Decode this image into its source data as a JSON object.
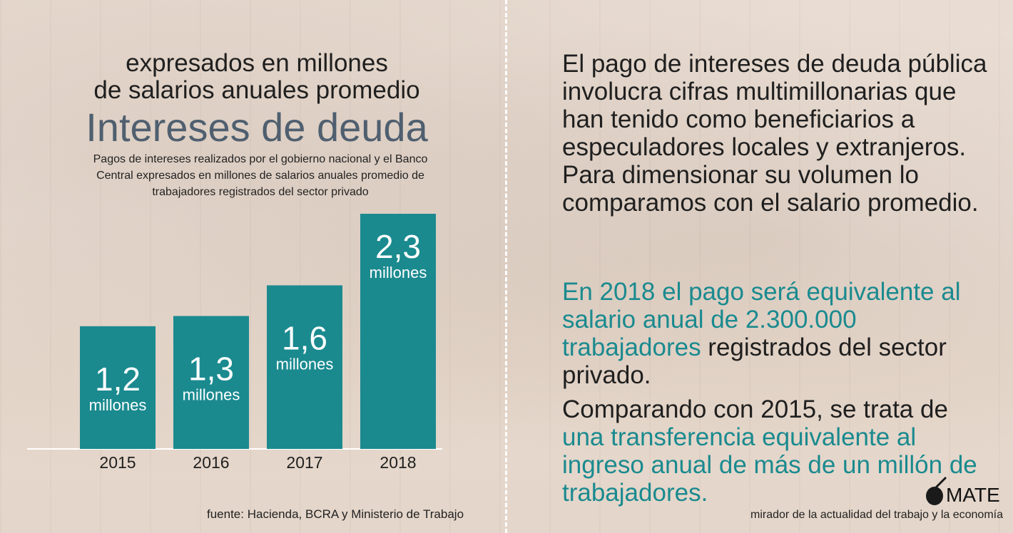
{
  "header": {
    "subtitle_line1": "expresados en millones",
    "subtitle_line2": "de salarios anuales promedio",
    "title": "Intereses de deuda",
    "description": "Pagos de intereses realizados por el gobierno nacional y el Banco Central expresados en millones de salarios anuales promedio de trabajadores registrados del sector privado"
  },
  "chart_data": {
    "type": "bar",
    "categories": [
      "2015",
      "2016",
      "2017",
      "2018"
    ],
    "values": [
      1.2,
      1.3,
      1.6,
      2.3
    ],
    "value_labels": [
      "1,2",
      "1,3",
      "1,6",
      "2,3"
    ],
    "unit_label": "millones",
    "ylim": [
      0,
      2.3
    ],
    "bar_color": "#1a8a8f",
    "grid": false,
    "legend": "none"
  },
  "source": "fuente: Hacienda, BCRA y Ministerio de Trabajo",
  "right_text": {
    "p1": "El pago de intereses de deuda pública involucra cifras multimillonarias que han tenido como beneficiarios a especuladores locales y extranjeros. Para dimensionar su volumen lo comparamos con el salario promedio.",
    "p2_teal": "En 2018 el pago será equivalente al salario anual de 2.300.000 trabajadores",
    "p2_rest": " registrados del sector privado.",
    "p3_start": "Comparando con 2015, se trata de ",
    "p3_teal": "una transferencia equivalente al ingreso anual de más de un millón de trabajadores."
  },
  "branding": {
    "logo": "MATE",
    "tagline": "mirador de la actualidad del trabajo y la economía"
  },
  "colors": {
    "accent": "#1a8a8f",
    "title": "#4f5f6f"
  }
}
